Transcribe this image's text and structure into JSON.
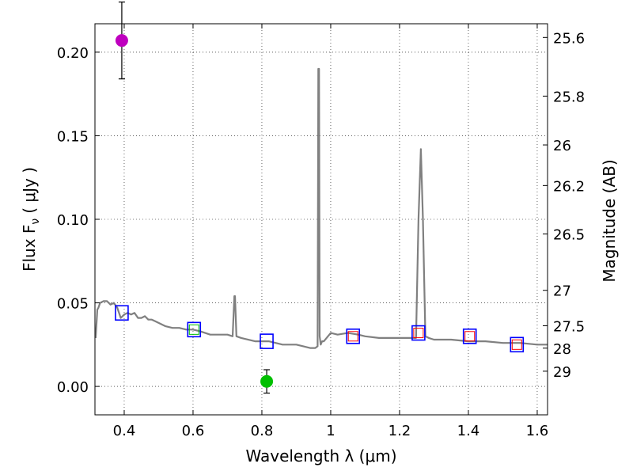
{
  "chart_data": {
    "type": "scatter",
    "title": "",
    "xlabel": "Wavelength  λ (μm)",
    "ylabel": "Flux  F",
    "ylabel_sub": "ν",
    "ylabel_unit": "( μJy )",
    "y2label": "Magnitude (AB)",
    "xlim": [
      0.315,
      1.63
    ],
    "ylim": [
      -0.017,
      0.217
    ],
    "x_ticks": [
      0.4,
      0.6,
      0.8,
      1.0,
      1.2,
      1.4,
      1.6
    ],
    "x_tick_labels": [
      "0.4",
      "0.6",
      "0.8",
      "1",
      "1.2",
      "1.4",
      "1.6"
    ],
    "y_ticks": [
      0.0,
      0.05,
      0.1,
      0.15,
      0.2
    ],
    "y_tick_labels": [
      "0.00",
      "0.05",
      "0.10",
      "0.15",
      "0.20"
    ],
    "mag_ticks": [
      {
        "label": "25.6",
        "flux": 0.2088
      },
      {
        "label": "25.8",
        "flux": 0.1737
      },
      {
        "label": "26",
        "flux": 0.1445
      },
      {
        "label": "26.2",
        "flux": 0.1202
      },
      {
        "label": "26.5",
        "flux": 0.0912
      },
      {
        "label": "27",
        "flux": 0.0575
      },
      {
        "label": "27.5",
        "flux": 0.0363
      },
      {
        "label": "28",
        "flux": 0.0229
      },
      {
        "label": "29",
        "flux": 0.0091
      }
    ],
    "grid": true,
    "colors": {
      "spectrum": "#808080",
      "model_box": "#0000ff",
      "obs_magenta": "#bf00bf",
      "obs_green": "#00bf00",
      "inner_green": "#00bf00",
      "inner_red": "#ff0000"
    },
    "spectrum": {
      "x": [
        0.317,
        0.322,
        0.325,
        0.33,
        0.34,
        0.35,
        0.36,
        0.37,
        0.38,
        0.39,
        0.4,
        0.41,
        0.42,
        0.43,
        0.44,
        0.45,
        0.46,
        0.47,
        0.48,
        0.49,
        0.5,
        0.52,
        0.54,
        0.56,
        0.58,
        0.6,
        0.62,
        0.65,
        0.68,
        0.7,
        0.715,
        0.72,
        0.722,
        0.726,
        0.74,
        0.78,
        0.82,
        0.86,
        0.9,
        0.94,
        0.955,
        0.962,
        0.964,
        0.966,
        0.968,
        0.971,
        0.975,
        0.98,
        1.0,
        1.02,
        1.05,
        1.08,
        1.1,
        1.14,
        1.18,
        1.22,
        1.248,
        1.255,
        1.262,
        1.268,
        1.275,
        1.285,
        1.3,
        1.35,
        1.4,
        1.45,
        1.5,
        1.55,
        1.6,
        1.63
      ],
      "y": [
        0.029,
        0.046,
        0.047,
        0.05,
        0.051,
        0.051,
        0.049,
        0.05,
        0.047,
        0.041,
        0.043,
        0.044,
        0.043,
        0.044,
        0.041,
        0.041,
        0.042,
        0.04,
        0.04,
        0.039,
        0.038,
        0.036,
        0.035,
        0.035,
        0.034,
        0.034,
        0.033,
        0.031,
        0.031,
        0.031,
        0.03,
        0.054,
        0.054,
        0.03,
        0.029,
        0.027,
        0.027,
        0.025,
        0.025,
        0.023,
        0.023,
        0.024,
        0.19,
        0.19,
        0.03,
        0.025,
        0.027,
        0.027,
        0.032,
        0.031,
        0.032,
        0.031,
        0.03,
        0.029,
        0.029,
        0.029,
        0.029,
        0.1,
        0.142,
        0.1,
        0.03,
        0.029,
        0.028,
        0.028,
        0.027,
        0.027,
        0.026,
        0.026,
        0.025,
        0.025
      ]
    },
    "series": [
      {
        "kind": "model-photometry",
        "x": [
          0.393,
          0.603,
          0.814,
          1.065,
          1.255,
          1.404,
          1.541
        ],
        "y": [
          0.044,
          0.034,
          0.027,
          0.03,
          0.032,
          0.03,
          0.025
        ],
        "inner": [
          null,
          "green",
          null,
          "red",
          "red",
          "red",
          "red"
        ]
      },
      {
        "kind": "observed",
        "points": [
          {
            "x": 0.393,
            "y": 0.207,
            "err": 0.023,
            "color": "magenta"
          },
          {
            "x": 0.814,
            "y": 0.003,
            "err": 0.007,
            "color": "green"
          }
        ]
      }
    ]
  }
}
